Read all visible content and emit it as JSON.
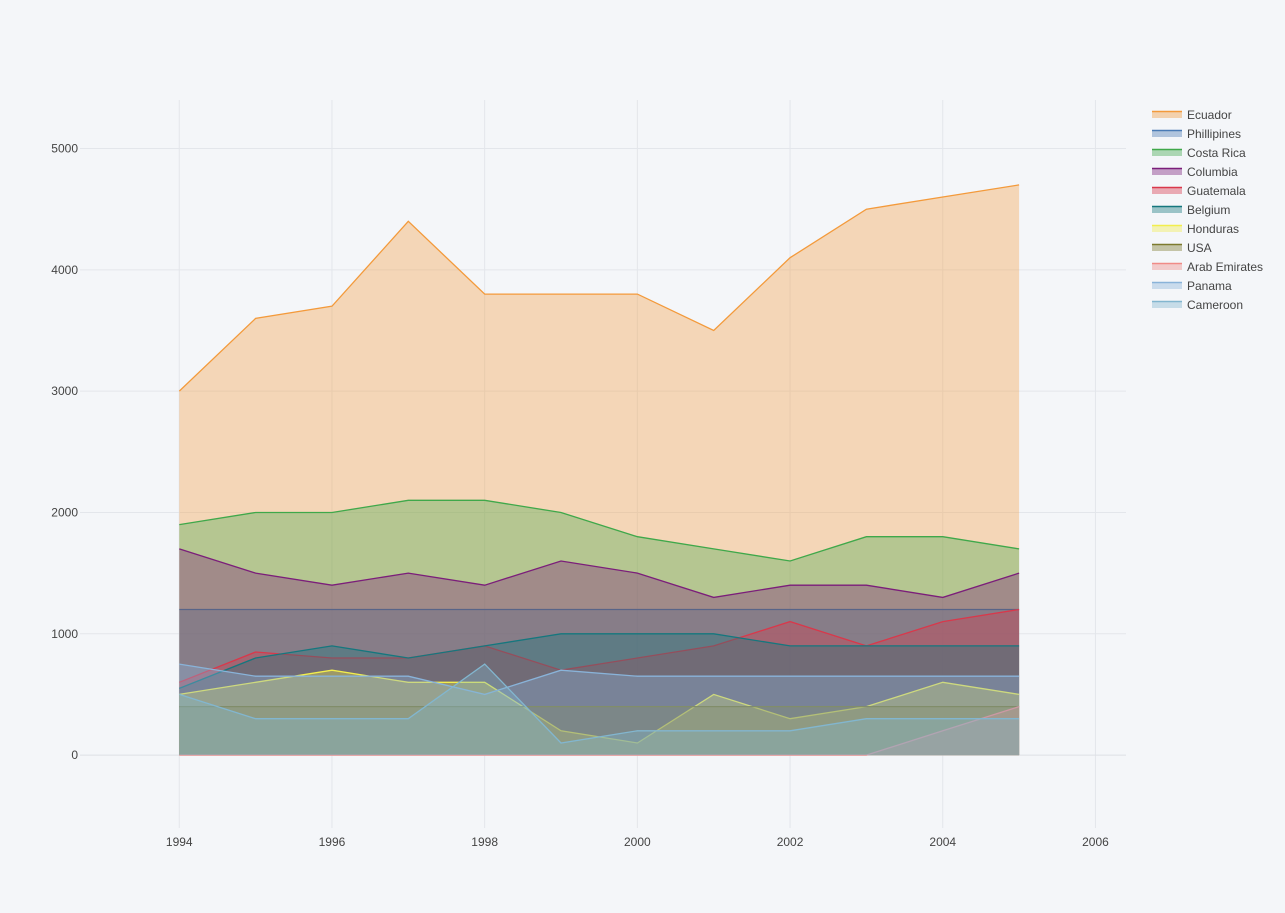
{
  "chart_data": {
    "type": "area",
    "title": "",
    "xlabel": "",
    "ylabel": "",
    "xlim": [
      1992.7,
      2006.4
    ],
    "ylim": [
      -700,
      5400
    ],
    "x_ticks": [
      1994,
      1996,
      1998,
      2000,
      2002,
      2004,
      2006
    ],
    "y_ticks": [
      0,
      1000,
      2000,
      3000,
      4000,
      5000
    ],
    "grid": true,
    "legend_position": "top-right",
    "x": [
      1994,
      1995,
      1996,
      1997,
      1998,
      1999,
      2000,
      2001,
      2002,
      2003,
      2004,
      2005
    ],
    "series": [
      {
        "name": "Ecuador",
        "color": "#F39A3B",
        "values": [
          3000,
          3600,
          3700,
          4400,
          3800,
          3800,
          3800,
          3500,
          4100,
          4500,
          4600,
          4700
        ]
      },
      {
        "name": "Phillipines",
        "color": "#4A7BB5",
        "values": [
          1200,
          1200,
          1200,
          1200,
          1200,
          1200,
          1200,
          1200,
          1200,
          1200,
          1200,
          1200
        ]
      },
      {
        "name": "Costa Rica",
        "color": "#3FA84A",
        "values": [
          1900,
          2000,
          2000,
          2100,
          2100,
          2000,
          1800,
          1700,
          1600,
          1800,
          1800,
          1700
        ]
      },
      {
        "name": "Columbia",
        "color": "#7B1E7A",
        "values": [
          1700,
          1500,
          1400,
          1500,
          1400,
          1600,
          1500,
          1300,
          1400,
          1400,
          1300,
          1500
        ]
      },
      {
        "name": "Guatemala",
        "color": "#D9384B",
        "values": [
          600,
          850,
          800,
          800,
          900,
          700,
          800,
          900,
          1100,
          900,
          1100,
          1200
        ]
      },
      {
        "name": "Belgium",
        "color": "#15777E",
        "values": [
          550,
          800,
          900,
          800,
          900,
          1000,
          1000,
          1000,
          900,
          900,
          900,
          900
        ]
      },
      {
        "name": "Honduras",
        "color": "#F2EE4D",
        "values": [
          500,
          600,
          700,
          600,
          600,
          200,
          100,
          500,
          300,
          400,
          600,
          500
        ]
      },
      {
        "name": "USA",
        "color": "#7D7A2E",
        "values": [
          400,
          400,
          400,
          400,
          400,
          400,
          400,
          400,
          400,
          400,
          400,
          400
        ]
      },
      {
        "name": "Arab Emirates",
        "color": "#F08B87",
        "values": [
          0,
          0,
          0,
          0,
          0,
          0,
          0,
          0,
          0,
          0,
          200,
          400
        ]
      },
      {
        "name": "Panama",
        "color": "#89B3D9",
        "values": [
          750,
          650,
          650,
          650,
          500,
          700,
          650,
          650,
          650,
          650,
          650,
          650
        ]
      },
      {
        "name": "Cameroon",
        "color": "#82B6CF",
        "values": [
          500,
          300,
          300,
          300,
          750,
          100,
          200,
          200,
          200,
          300,
          300,
          300
        ]
      }
    ]
  }
}
